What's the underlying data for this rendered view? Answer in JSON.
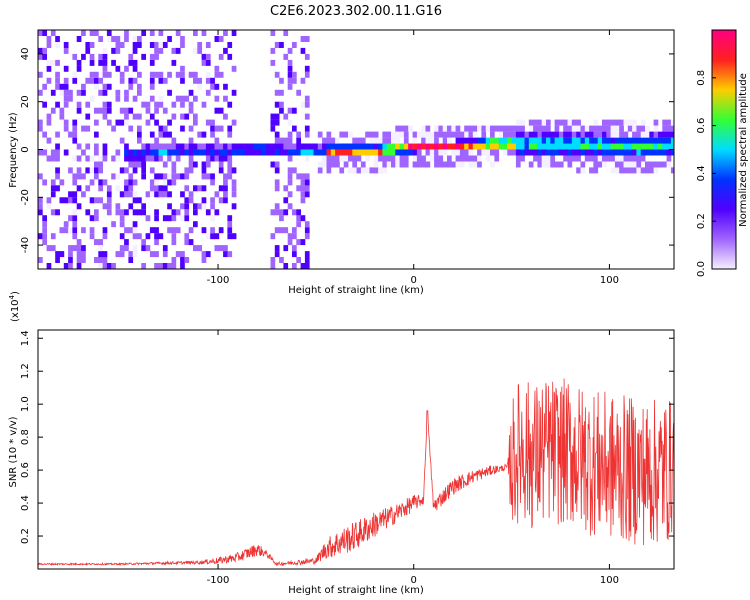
{
  "figure": {
    "title": "C2E6.2023.302.00.11.G16"
  },
  "colors": {
    "snr_line": "#ee3333",
    "colormap": [
      "#f5f0ff",
      "#a064ff",
      "#5000ff",
      "#0033ff",
      "#00ddff",
      "#33ff33",
      "#ffcc00",
      "#ff2020",
      "#ff0080"
    ]
  },
  "chart_data": [
    {
      "type": "heatmap",
      "xlabel": "Height of straight line (km)",
      "ylabel": "Frequency (Hz)",
      "xlim": [
        -192,
        133
      ],
      "ylim": [
        -50,
        50
      ],
      "xticks": [
        -100,
        0,
        100
      ],
      "yticks": [
        -40,
        -20,
        0,
        20,
        40
      ],
      "grid": false,
      "ridge": {
        "x": [
          -140,
          -120,
          -100,
          -80,
          -60,
          -40,
          -20,
          0,
          20,
          40,
          60,
          80,
          100,
          120,
          133
        ],
        "freq": [
          -3,
          -2,
          -2,
          -1,
          -2,
          -2,
          -2,
          0,
          0,
          1,
          1,
          1,
          0,
          0,
          1
        ]
      },
      "colorbar": {
        "label": "Normalized spectral amplitude",
        "range": [
          0,
          1
        ],
        "ticks": [
          "0.0",
          "0.2",
          "0.4",
          "0.6",
          "0.8"
        ]
      }
    },
    {
      "type": "line",
      "xlabel": "Height of straight line (km)",
      "ylabel": "SNR (10 * v/v)",
      "scale_label": "(x10",
      "scale_exp": "4",
      "scale_close": ")",
      "xlim": [
        -192,
        133
      ],
      "ylim": [
        0,
        1.45
      ],
      "xticks": [
        -100,
        0,
        100
      ],
      "yticks": [
        "0.2",
        "0.4",
        "0.6",
        "0.8",
        "1.0",
        "1.2",
        "1.4"
      ],
      "series": [
        {
          "x": [
            -192,
            -150,
            -110,
            -100,
            -90,
            -80,
            -75,
            -70,
            -50,
            -45,
            -40,
            -30,
            -20,
            -10,
            0,
            5,
            7,
            10,
            20,
            30,
            40,
            45,
            48,
            50,
            55,
            60,
            70,
            80,
            90,
            100,
            110,
            120,
            130,
            133
          ],
          "y": [
            0.03,
            0.03,
            0.04,
            0.05,
            0.07,
            0.12,
            0.09,
            0.03,
            0.05,
            0.12,
            0.15,
            0.2,
            0.27,
            0.33,
            0.4,
            0.42,
            0.96,
            0.38,
            0.5,
            0.56,
            0.6,
            0.61,
            0.62,
            0.63,
            0.75,
            0.68,
            0.72,
            0.7,
            0.65,
            0.62,
            0.6,
            0.58,
            0.6,
            0.62
          ],
          "noise": [
            0.005,
            0.005,
            0.01,
            0.02,
            0.03,
            0.04,
            0.02,
            0.01,
            0.02,
            0.06,
            0.08,
            0.09,
            0.08,
            0.06,
            0.05,
            0.03,
            0.0,
            0.05,
            0.05,
            0.04,
            0.03,
            0.02,
            0.02,
            0.4,
            0.45,
            0.45,
            0.45,
            0.45,
            0.45,
            0.45,
            0.45,
            0.45,
            0.45,
            0.4
          ]
        }
      ]
    }
  ]
}
